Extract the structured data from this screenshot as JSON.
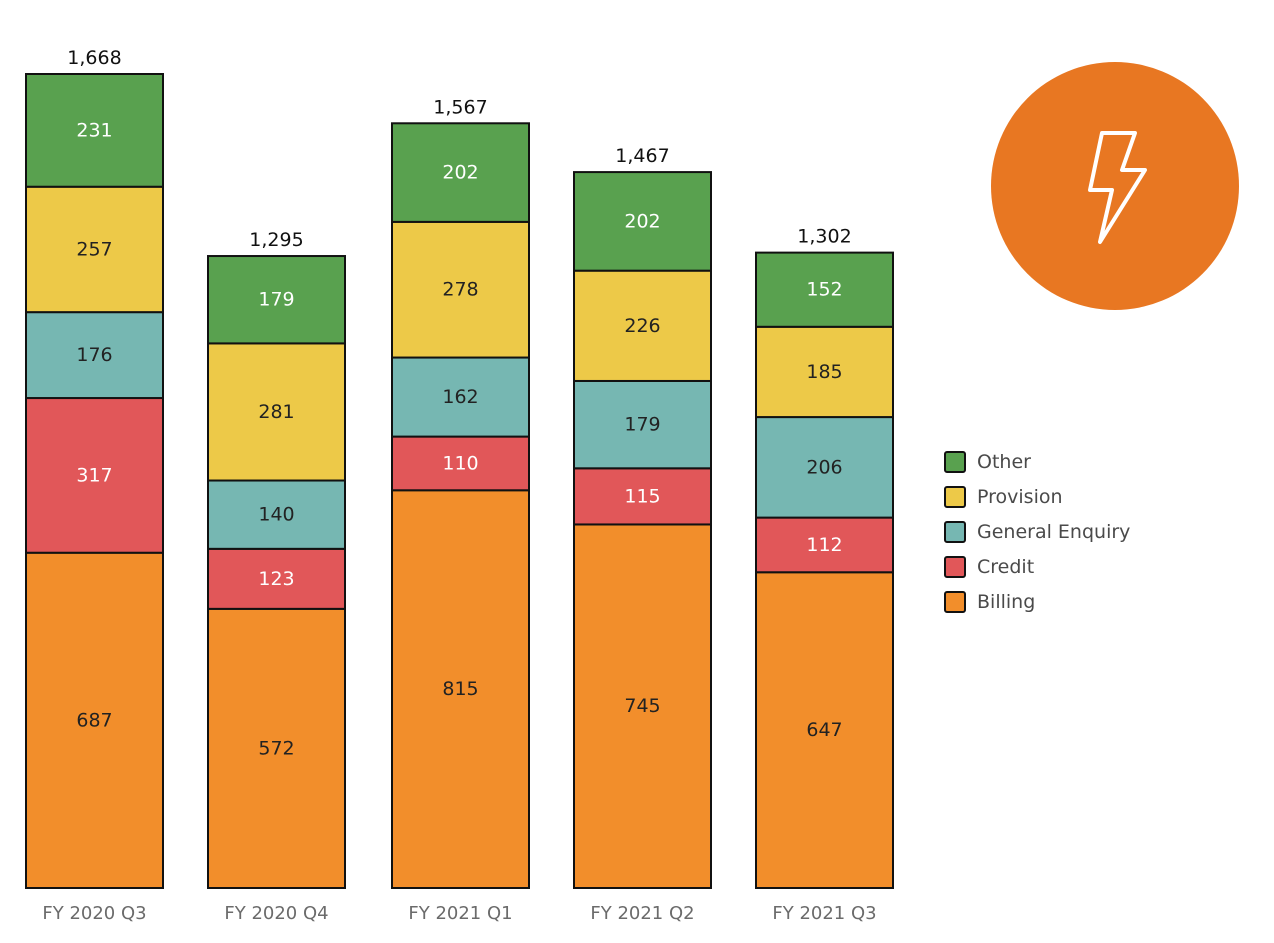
{
  "chart_data": {
    "type": "bar",
    "stacked": true,
    "title": "",
    "xlabel": "",
    "ylabel": "",
    "ylim": [
      0,
      1668
    ],
    "grid": false,
    "legend_position": "right",
    "categories": [
      "FY 2020 Q3",
      "FY 2020 Q4",
      "FY 2021 Q1",
      "FY 2021 Q2",
      "FY 2021 Q3"
    ],
    "totals": [
      "1,668",
      "1,295",
      "1,567",
      "1,467",
      "1,302"
    ],
    "series": [
      {
        "name": "Billing",
        "color": "#F28E2B",
        "label_color": "#222222",
        "values": [
          687,
          572,
          815,
          745,
          647
        ]
      },
      {
        "name": "Credit",
        "color": "#E15759",
        "label_color": "#ffffff",
        "values": [
          317,
          123,
          110,
          115,
          112
        ]
      },
      {
        "name": "General Enquiry",
        "color": "#76B7B2",
        "label_color": "#222222",
        "values": [
          176,
          140,
          162,
          179,
          206
        ]
      },
      {
        "name": "Provision",
        "color": "#EDC948",
        "label_color": "#222222",
        "values": [
          257,
          281,
          278,
          226,
          185
        ]
      },
      {
        "name": "Other",
        "color": "#59A14F",
        "label_color": "#ffffff",
        "values": [
          231,
          179,
          202,
          202,
          152
        ]
      }
    ],
    "legend_order": [
      "Other",
      "Provision",
      "General Enquiry",
      "Credit",
      "Billing"
    ]
  },
  "badge": {
    "icon": "lightning-bolt-icon",
    "color": "#E87722"
  }
}
